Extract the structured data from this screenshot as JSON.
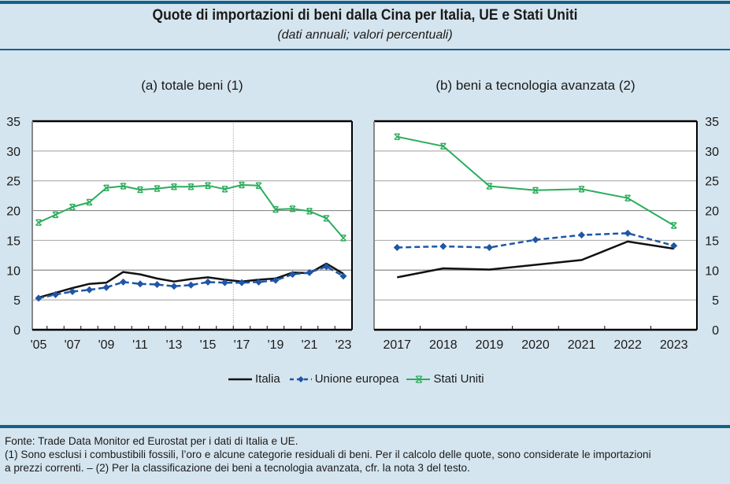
{
  "header": {
    "title": "Quote di importazioni di beni dalla Cina per Italia, UE e Stati Uniti",
    "subtitle": "(dati annuali; valori percentuali)"
  },
  "colors": {
    "italia": "#111111",
    "ue": "#1f56a6",
    "usa": "#2aad5b",
    "background": "#d5e5ef",
    "rule": "#14608a"
  },
  "legend": [
    {
      "label": "Italia",
      "series": "italia"
    },
    {
      "label": "Unione europea",
      "series": "ue"
    },
    {
      "label": "Stati Uniti",
      "series": "usa"
    }
  ],
  "footnotes": [
    "Fonte: Trade Data Monitor ed Eurostat per i dati di Italia e UE.",
    "(1) Sono esclusi i combustibili fossili, l’oro e alcune categorie residuali di beni. Per il calcolo delle quote, sono considerate le importazioni",
    "a prezzi correnti. – (2) Per la classificazione dei beni a tecnologia avanzata, cfr. la nota 3 del testo."
  ],
  "chart_data": [
    {
      "type": "line",
      "title": "(a) totale beni (1)",
      "x": [
        2005,
        2006,
        2007,
        2008,
        2009,
        2010,
        2011,
        2012,
        2013,
        2014,
        2015,
        2016,
        2017,
        2018,
        2019,
        2020,
        2021,
        2022,
        2023
      ],
      "x_tick_labels": [
        "'05",
        "'07",
        "'09",
        "'11",
        "'13",
        "'15",
        "'17",
        "'19",
        "'21",
        "'23"
      ],
      "y_ticks": [
        0,
        5,
        10,
        15,
        20,
        25,
        30,
        35
      ],
      "ylim": [
        0,
        35
      ],
      "y_axis_side": "left",
      "grid": true,
      "vertical_marker_at": 2016.5,
      "series": [
        {
          "name": "Italia",
          "key": "italia",
          "values": [
            5.4,
            6.2,
            7.0,
            7.7,
            7.9,
            9.7,
            9.3,
            8.6,
            8.1,
            8.5,
            8.8,
            8.4,
            8.1,
            8.4,
            8.6,
            9.6,
            9.5,
            11.1,
            9.4
          ]
        },
        {
          "name": "Unione europea",
          "key": "ue",
          "values": [
            5.3,
            5.9,
            6.4,
            6.7,
            7.1,
            8.0,
            7.7,
            7.6,
            7.3,
            7.5,
            8.0,
            7.9,
            7.9,
            8.0,
            8.3,
            9.3,
            9.6,
            10.6,
            9.0
          ]
        },
        {
          "name": "Stati Uniti",
          "key": "usa",
          "values": [
            18.0,
            19.3,
            20.6,
            21.4,
            23.8,
            24.1,
            23.5,
            23.7,
            24.0,
            24.0,
            24.2,
            23.6,
            24.3,
            24.2,
            20.2,
            20.3,
            19.9,
            18.7,
            15.4
          ]
        }
      ]
    },
    {
      "type": "line",
      "title": "(b) beni a tecnologia avanzata (2)",
      "x": [
        2017,
        2018,
        2019,
        2020,
        2021,
        2022,
        2023
      ],
      "x_tick_labels": [
        "2017",
        "2018",
        "2019",
        "2020",
        "2021",
        "2022",
        "2023"
      ],
      "y_ticks": [
        0,
        5,
        10,
        15,
        20,
        25,
        30,
        35
      ],
      "ylim": [
        0,
        35
      ],
      "y_axis_side": "right",
      "grid": true,
      "series": [
        {
          "name": "Italia",
          "key": "italia",
          "values": [
            8.8,
            10.3,
            10.1,
            10.9,
            11.7,
            14.8,
            13.6
          ]
        },
        {
          "name": "Unione europea",
          "key": "ue",
          "values": [
            13.8,
            14.0,
            13.8,
            15.1,
            15.9,
            16.2,
            14.1
          ]
        },
        {
          "name": "Stati Uniti",
          "key": "usa",
          "values": [
            32.4,
            30.8,
            24.1,
            23.4,
            23.6,
            22.1,
            17.5
          ]
        }
      ]
    }
  ]
}
